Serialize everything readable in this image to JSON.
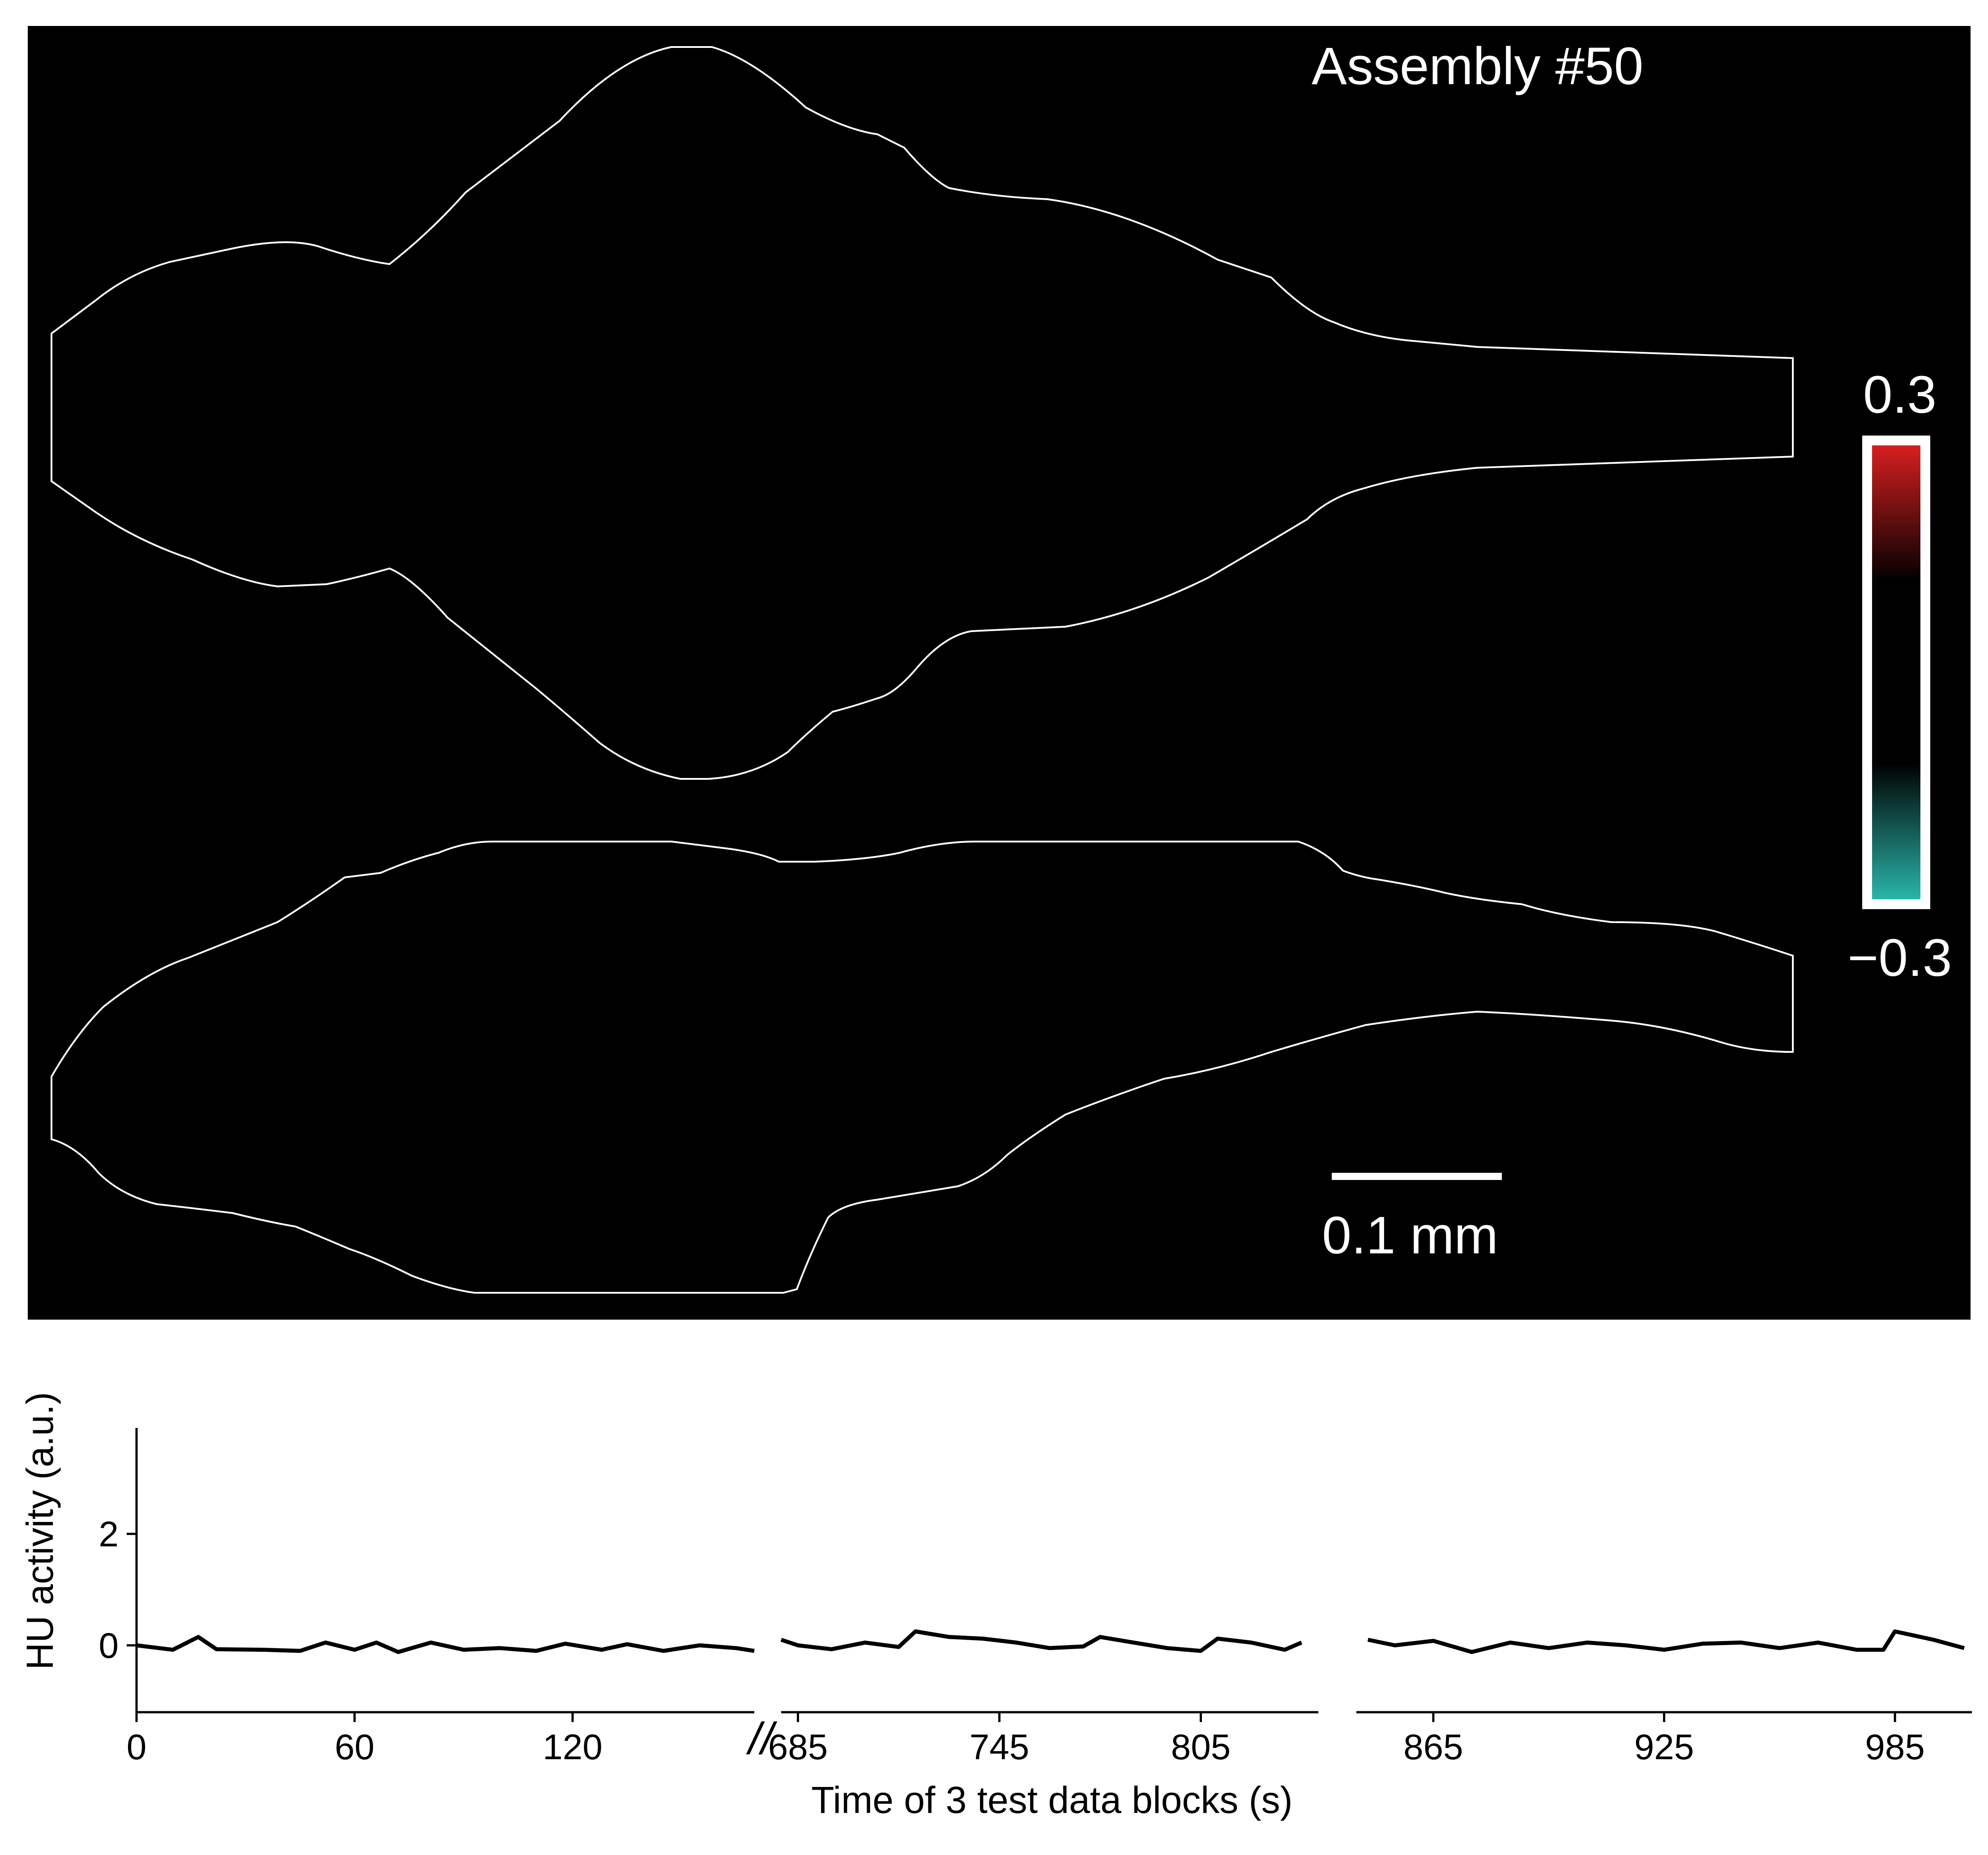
{
  "brain_panel": {
    "title": "Assembly #50",
    "colorbar": {
      "max_label": "0.3",
      "min_label": "−0.3",
      "max_value": 0.3,
      "min_value": -0.3,
      "colors": {
        "high": "#d61f1f",
        "mid": "#000000",
        "low": "#2ab5aa"
      }
    },
    "scale_bar_label": "0.1 mm",
    "background": "#000000",
    "outline_color": "#ffffff"
  },
  "chart_data": {
    "type": "line",
    "xlabel": "Time of 3 test data blocks (s)",
    "ylabel": "HU activity (a.u.)",
    "ylim": [
      -1.2,
      3.9
    ],
    "yticks": [
      0,
      2
    ],
    "grid": false,
    "axis_break": "//",
    "line_color": "#000000",
    "blocks": [
      {
        "xlim": [
          0,
          170
        ],
        "xticks": [
          0,
          60,
          120
        ],
        "x": [
          0,
          10,
          17,
          22,
          35,
          45,
          52,
          60,
          66,
          72,
          81,
          90,
          100,
          110,
          118,
          128,
          135,
          145,
          155,
          165,
          170
        ],
        "y": [
          0.0,
          -0.08,
          0.15,
          -0.07,
          -0.08,
          -0.1,
          0.05,
          -0.08,
          0.05,
          -0.12,
          0.05,
          -0.08,
          -0.05,
          -0.1,
          0.03,
          -0.08,
          0.02,
          -0.1,
          0.0,
          -0.05,
          -0.1
        ]
      },
      {
        "xlim": [
          680,
          840
        ],
        "xticks": [
          685,
          745,
          805
        ],
        "x": [
          680,
          685,
          695,
          705,
          715,
          720,
          730,
          740,
          750,
          760,
          770,
          775,
          785,
          795,
          805,
          810,
          820,
          830,
          835
        ],
        "y": [
          0.1,
          0.0,
          -0.07,
          0.05,
          -0.03,
          0.25,
          0.15,
          0.12,
          0.05,
          -0.05,
          -0.02,
          0.15,
          0.05,
          -0.05,
          -0.1,
          0.12,
          0.05,
          -0.08,
          0.05
        ]
      },
      {
        "xlim": [
          845,
          1005
        ],
        "xticks": [
          865,
          925,
          985
        ],
        "x": [
          848,
          855,
          865,
          875,
          885,
          895,
          905,
          915,
          925,
          935,
          945,
          955,
          965,
          975,
          982,
          985,
          995,
          1003
        ],
        "y": [
          0.1,
          0.0,
          0.08,
          -0.12,
          0.05,
          -0.05,
          0.05,
          0.0,
          -0.08,
          0.03,
          0.05,
          -0.05,
          0.05,
          -0.08,
          -0.08,
          0.25,
          0.1,
          -0.05
        ]
      }
    ],
    "tick_labels": [
      "0",
      "60",
      "120",
      "685",
      "745",
      "805",
      "865",
      "925",
      "985"
    ]
  }
}
